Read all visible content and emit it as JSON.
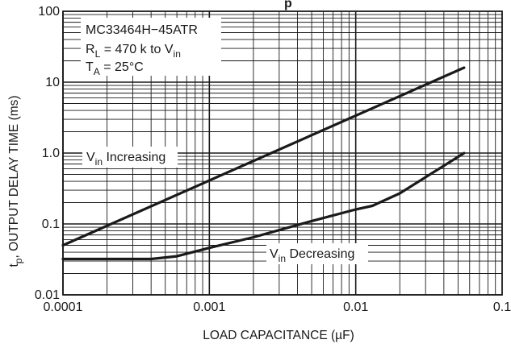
{
  "chart_data": {
    "type": "line",
    "x_scale": "log",
    "y_scale": "log",
    "xlim": [
      0.0001,
      0.1
    ],
    "ylim": [
      0.01,
      100
    ],
    "grid": true,
    "title_fragment": "p",
    "xlabel": "LOAD CAPACITANCE (µF)",
    "ylabel_main": "t",
    "ylabel_sub": "p",
    "ylabel_rest": ", OUTPUT DELAY TIME (ms)",
    "x_ticks": [
      {
        "value": 0.0001,
        "label": "0.0001"
      },
      {
        "value": 0.001,
        "label": "0.001"
      },
      {
        "value": 0.01,
        "label": "0.01"
      },
      {
        "value": 0.1,
        "label": "0.1"
      }
    ],
    "y_ticks": [
      {
        "value": 0.01,
        "label": "0.01"
      },
      {
        "value": 0.1,
        "label": "0.1"
      },
      {
        "value": 1,
        "label": "1.0"
      },
      {
        "value": 10,
        "label": "10"
      },
      {
        "value": 100,
        "label": "100"
      }
    ],
    "conditions": {
      "device": "MC33464H−45ATR",
      "rl_main": "R",
      "rl_sub": "L",
      "rl_rest": " = 470 k to V",
      "rl_sub2": "in",
      "ta_main": "T",
      "ta_sub": "A",
      "ta_rest": " = 25°C"
    },
    "series": [
      {
        "label_main": "V",
        "label_sub": "in",
        "label_rest": " Increasing",
        "points": [
          [
            0.0001,
            0.05
          ],
          [
            0.055,
            16
          ]
        ]
      },
      {
        "label_main": "V",
        "label_sub": "in",
        "label_rest": " Decreasing",
        "points": [
          [
            0.0001,
            0.032
          ],
          [
            0.0004,
            0.032
          ],
          [
            0.0006,
            0.035
          ],
          [
            0.001,
            0.046
          ],
          [
            0.002,
            0.065
          ],
          [
            0.005,
            0.11
          ],
          [
            0.01,
            0.16
          ],
          [
            0.013,
            0.18
          ],
          [
            0.02,
            0.27
          ],
          [
            0.055,
            1.0
          ]
        ]
      }
    ],
    "colors": {
      "line": "#1a1a1a",
      "grid": "#1a1a1a",
      "background": "#ffffff"
    }
  }
}
